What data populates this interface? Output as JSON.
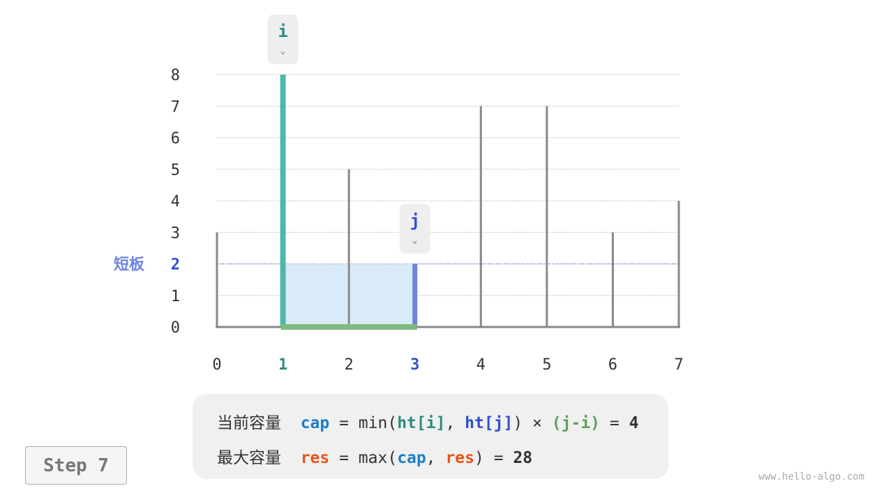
{
  "chart_data": {
    "type": "bar",
    "categories": [
      "0",
      "1",
      "2",
      "3",
      "4",
      "5",
      "6",
      "7"
    ],
    "values": [
      3,
      8,
      5,
      2,
      7,
      7,
      3,
      4
    ],
    "y_ticks": [
      "0",
      "1",
      "2",
      "3",
      "4",
      "5",
      "6",
      "7",
      "8"
    ],
    "ylim": [
      0,
      8
    ],
    "grid": true,
    "pointers": {
      "i": {
        "label": "i",
        "index": 1
      },
      "j": {
        "label": "j",
        "index": 3
      }
    },
    "short_board": {
      "label": "短板",
      "value": 2
    },
    "colors": {
      "i": "#4fb8ad",
      "j": "#6f84dc",
      "area": "#d9ebf8",
      "width": "#7fba7f",
      "bar": "#888888",
      "short": "#2f4fd0"
    }
  },
  "formula": {
    "line1": {
      "label": "当前容量",
      "var": "cap",
      "eq": " = ",
      "fn": "min(",
      "a": "ht[i]",
      "comma": ", ",
      "b": "ht[j]",
      "close": ")",
      "times": " × ",
      "diff": "(j-i)",
      "eq2": " = ",
      "result": "4"
    },
    "line2": {
      "label": "最大容量",
      "var": "res",
      "eq": " = ",
      "fn": "max(",
      "a": "cap",
      "comma": ", ",
      "b": "res",
      "close": ")",
      "eq2": " = ",
      "result": "28"
    }
  },
  "step": "Step 7",
  "watermark": "www.hello-algo.com"
}
